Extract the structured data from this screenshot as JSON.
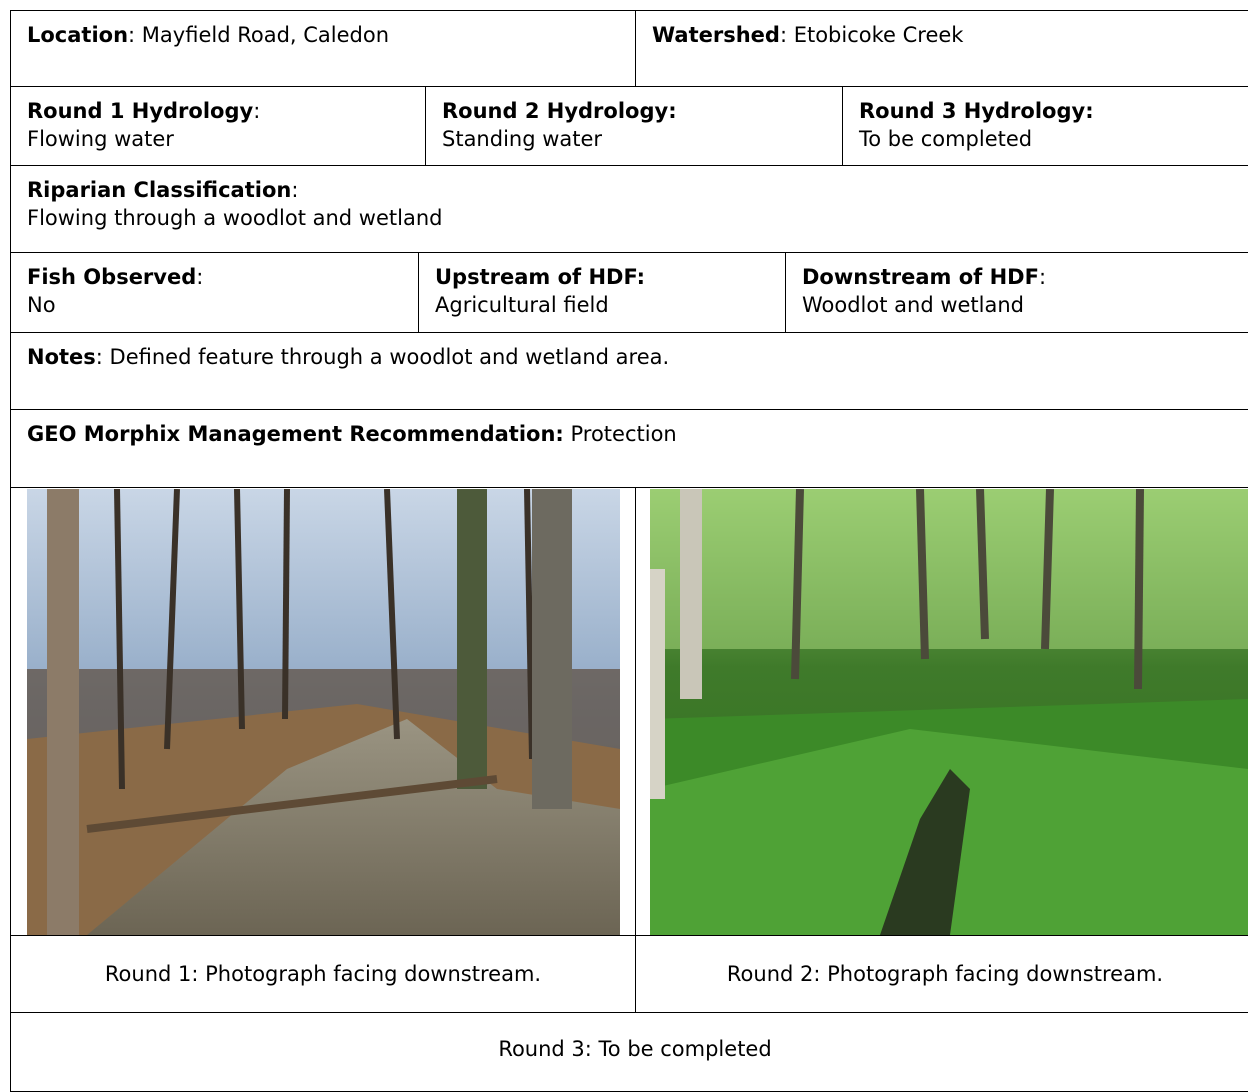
{
  "header": {
    "location": {
      "label": "Location",
      "text": ": Mayfield Road, Caledon"
    },
    "watershed": {
      "label": "Watershed",
      "text": ": Etobicoke Creek"
    }
  },
  "hydrology": [
    {
      "label": "Round 1 Hydrology",
      "sep": ":",
      "value": "Flowing water"
    },
    {
      "label": "Round 2 Hydrology:",
      "value": "Standing water"
    },
    {
      "label": "Round 3 Hydrology:",
      "value": "To be completed"
    }
  ],
  "riparian": {
    "label": "Riparian Classification",
    "sep": ":",
    "value": "Flowing through a woodlot and wetland"
  },
  "observations": [
    {
      "label": "Fish Observed",
      "sep": ":",
      "value": "No"
    },
    {
      "label": "Upstream of HDF:",
      "value": "Agricultural field"
    },
    {
      "label": "Downstream of HDF",
      "sep": ":",
      "value": "Woodlot and wetland"
    }
  ],
  "notes": {
    "label": "Notes",
    "text": ": Defined feature through a woodlot and wetland area."
  },
  "recommendation": {
    "label": "GEO Morphix Management Recommendation:",
    "text": " Protection"
  },
  "photos": [
    {
      "caption": "Round 1: Photograph facing downstream."
    },
    {
      "caption": "Round 2: Photograph facing downstream."
    },
    {
      "caption": "Round 3: To be completed"
    }
  ]
}
